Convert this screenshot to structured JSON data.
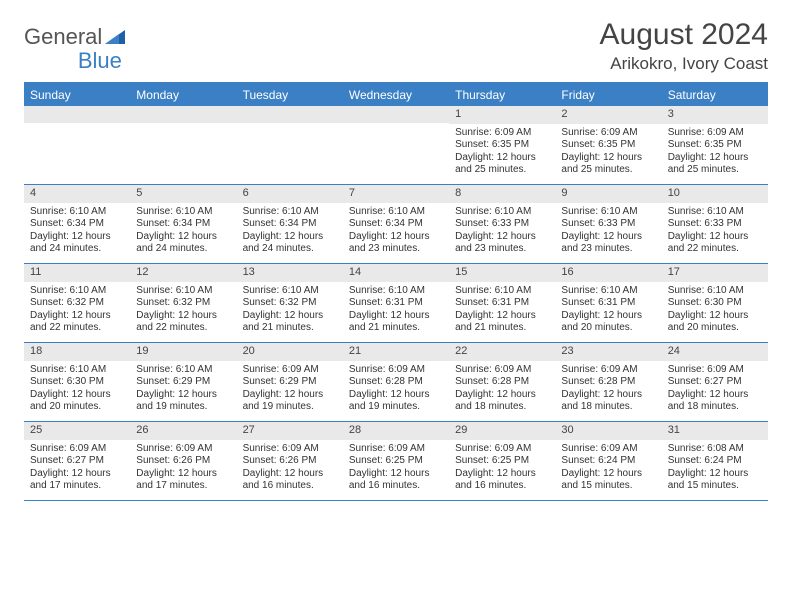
{
  "brand": {
    "part1": "General",
    "part2": "Blue"
  },
  "title": "August 2024",
  "location": "Arikokro, Ivory Coast",
  "colors": {
    "accent": "#3b7fc4",
    "header_text": "#ffffff",
    "daynum_bg": "#e9e9e9",
    "text": "#333333",
    "page_bg": "#ffffff"
  },
  "day_headers": [
    "Sunday",
    "Monday",
    "Tuesday",
    "Wednesday",
    "Thursday",
    "Friday",
    "Saturday"
  ],
  "weeks": [
    [
      {
        "num": "",
        "sunrise": "",
        "sunset": "",
        "daylight": ""
      },
      {
        "num": "",
        "sunrise": "",
        "sunset": "",
        "daylight": ""
      },
      {
        "num": "",
        "sunrise": "",
        "sunset": "",
        "daylight": ""
      },
      {
        "num": "",
        "sunrise": "",
        "sunset": "",
        "daylight": ""
      },
      {
        "num": "1",
        "sunrise": "Sunrise: 6:09 AM",
        "sunset": "Sunset: 6:35 PM",
        "daylight": "Daylight: 12 hours and 25 minutes."
      },
      {
        "num": "2",
        "sunrise": "Sunrise: 6:09 AM",
        "sunset": "Sunset: 6:35 PM",
        "daylight": "Daylight: 12 hours and 25 minutes."
      },
      {
        "num": "3",
        "sunrise": "Sunrise: 6:09 AM",
        "sunset": "Sunset: 6:35 PM",
        "daylight": "Daylight: 12 hours and 25 minutes."
      }
    ],
    [
      {
        "num": "4",
        "sunrise": "Sunrise: 6:10 AM",
        "sunset": "Sunset: 6:34 PM",
        "daylight": "Daylight: 12 hours and 24 minutes."
      },
      {
        "num": "5",
        "sunrise": "Sunrise: 6:10 AM",
        "sunset": "Sunset: 6:34 PM",
        "daylight": "Daylight: 12 hours and 24 minutes."
      },
      {
        "num": "6",
        "sunrise": "Sunrise: 6:10 AM",
        "sunset": "Sunset: 6:34 PM",
        "daylight": "Daylight: 12 hours and 24 minutes."
      },
      {
        "num": "7",
        "sunrise": "Sunrise: 6:10 AM",
        "sunset": "Sunset: 6:34 PM",
        "daylight": "Daylight: 12 hours and 23 minutes."
      },
      {
        "num": "8",
        "sunrise": "Sunrise: 6:10 AM",
        "sunset": "Sunset: 6:33 PM",
        "daylight": "Daylight: 12 hours and 23 minutes."
      },
      {
        "num": "9",
        "sunrise": "Sunrise: 6:10 AM",
        "sunset": "Sunset: 6:33 PM",
        "daylight": "Daylight: 12 hours and 23 minutes."
      },
      {
        "num": "10",
        "sunrise": "Sunrise: 6:10 AM",
        "sunset": "Sunset: 6:33 PM",
        "daylight": "Daylight: 12 hours and 22 minutes."
      }
    ],
    [
      {
        "num": "11",
        "sunrise": "Sunrise: 6:10 AM",
        "sunset": "Sunset: 6:32 PM",
        "daylight": "Daylight: 12 hours and 22 minutes."
      },
      {
        "num": "12",
        "sunrise": "Sunrise: 6:10 AM",
        "sunset": "Sunset: 6:32 PM",
        "daylight": "Daylight: 12 hours and 22 minutes."
      },
      {
        "num": "13",
        "sunrise": "Sunrise: 6:10 AM",
        "sunset": "Sunset: 6:32 PM",
        "daylight": "Daylight: 12 hours and 21 minutes."
      },
      {
        "num": "14",
        "sunrise": "Sunrise: 6:10 AM",
        "sunset": "Sunset: 6:31 PM",
        "daylight": "Daylight: 12 hours and 21 minutes."
      },
      {
        "num": "15",
        "sunrise": "Sunrise: 6:10 AM",
        "sunset": "Sunset: 6:31 PM",
        "daylight": "Daylight: 12 hours and 21 minutes."
      },
      {
        "num": "16",
        "sunrise": "Sunrise: 6:10 AM",
        "sunset": "Sunset: 6:31 PM",
        "daylight": "Daylight: 12 hours and 20 minutes."
      },
      {
        "num": "17",
        "sunrise": "Sunrise: 6:10 AM",
        "sunset": "Sunset: 6:30 PM",
        "daylight": "Daylight: 12 hours and 20 minutes."
      }
    ],
    [
      {
        "num": "18",
        "sunrise": "Sunrise: 6:10 AM",
        "sunset": "Sunset: 6:30 PM",
        "daylight": "Daylight: 12 hours and 20 minutes."
      },
      {
        "num": "19",
        "sunrise": "Sunrise: 6:10 AM",
        "sunset": "Sunset: 6:29 PM",
        "daylight": "Daylight: 12 hours and 19 minutes."
      },
      {
        "num": "20",
        "sunrise": "Sunrise: 6:09 AM",
        "sunset": "Sunset: 6:29 PM",
        "daylight": "Daylight: 12 hours and 19 minutes."
      },
      {
        "num": "21",
        "sunrise": "Sunrise: 6:09 AM",
        "sunset": "Sunset: 6:28 PM",
        "daylight": "Daylight: 12 hours and 19 minutes."
      },
      {
        "num": "22",
        "sunrise": "Sunrise: 6:09 AM",
        "sunset": "Sunset: 6:28 PM",
        "daylight": "Daylight: 12 hours and 18 minutes."
      },
      {
        "num": "23",
        "sunrise": "Sunrise: 6:09 AM",
        "sunset": "Sunset: 6:28 PM",
        "daylight": "Daylight: 12 hours and 18 minutes."
      },
      {
        "num": "24",
        "sunrise": "Sunrise: 6:09 AM",
        "sunset": "Sunset: 6:27 PM",
        "daylight": "Daylight: 12 hours and 18 minutes."
      }
    ],
    [
      {
        "num": "25",
        "sunrise": "Sunrise: 6:09 AM",
        "sunset": "Sunset: 6:27 PM",
        "daylight": "Daylight: 12 hours and 17 minutes."
      },
      {
        "num": "26",
        "sunrise": "Sunrise: 6:09 AM",
        "sunset": "Sunset: 6:26 PM",
        "daylight": "Daylight: 12 hours and 17 minutes."
      },
      {
        "num": "27",
        "sunrise": "Sunrise: 6:09 AM",
        "sunset": "Sunset: 6:26 PM",
        "daylight": "Daylight: 12 hours and 16 minutes."
      },
      {
        "num": "28",
        "sunrise": "Sunrise: 6:09 AM",
        "sunset": "Sunset: 6:25 PM",
        "daylight": "Daylight: 12 hours and 16 minutes."
      },
      {
        "num": "29",
        "sunrise": "Sunrise: 6:09 AM",
        "sunset": "Sunset: 6:25 PM",
        "daylight": "Daylight: 12 hours and 16 minutes."
      },
      {
        "num": "30",
        "sunrise": "Sunrise: 6:09 AM",
        "sunset": "Sunset: 6:24 PM",
        "daylight": "Daylight: 12 hours and 15 minutes."
      },
      {
        "num": "31",
        "sunrise": "Sunrise: 6:08 AM",
        "sunset": "Sunset: 6:24 PM",
        "daylight": "Daylight: 12 hours and 15 minutes."
      }
    ]
  ]
}
